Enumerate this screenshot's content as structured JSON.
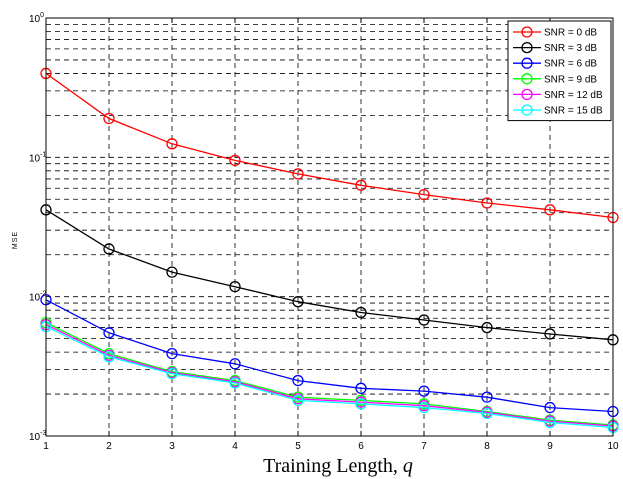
{
  "chart_data": {
    "type": "line",
    "xlabel": "Training Length,",
    "xlabel_var": "q",
    "ylabel": "MSE",
    "x": [
      1,
      2,
      3,
      4,
      5,
      6,
      7,
      8,
      9,
      10
    ],
    "xlim": [
      1,
      10
    ],
    "ylim": [
      0.001,
      1
    ],
    "yscale": "log",
    "y_ticks": [
      {
        "value": 1,
        "base": "10",
        "exp": "0"
      },
      {
        "value": 0.1,
        "base": "10",
        "exp": "-1"
      },
      {
        "value": 0.01,
        "base": "10",
        "exp": "-2"
      },
      {
        "value": 0.001,
        "base": "10",
        "exp": "-3"
      }
    ],
    "x_ticks": [
      "1",
      "2",
      "3",
      "4",
      "5",
      "6",
      "7",
      "8",
      "9",
      "10"
    ],
    "grid": true,
    "grid_style": "dashed",
    "legend_position": "top-right",
    "marker": "circle",
    "series": [
      {
        "name": "SNR = 0 dB",
        "color": "#ff0000",
        "values": [
          0.4,
          0.19,
          0.125,
          0.095,
          0.076,
          0.063,
          0.054,
          0.047,
          0.042,
          0.037
        ]
      },
      {
        "name": "SNR = 3 dB",
        "color": "#000000",
        "values": [
          0.042,
          0.022,
          0.015,
          0.0118,
          0.0092,
          0.0077,
          0.0068,
          0.006,
          0.0054,
          0.0049
        ]
      },
      {
        "name": "SNR = 6 dB",
        "color": "#0000ff",
        "values": [
          0.0095,
          0.0055,
          0.0039,
          0.0033,
          0.0025,
          0.0022,
          0.0021,
          0.0019,
          0.0016,
          0.0015
        ]
      },
      {
        "name": "SNR = 9 dB",
        "color": "#00ff00",
        "values": [
          0.0065,
          0.0039,
          0.0029,
          0.0025,
          0.0019,
          0.0018,
          0.0017,
          0.0015,
          0.0013,
          0.0012
        ]
      },
      {
        "name": "SNR = 12 dB",
        "color": "#ff00ff",
        "values": [
          0.0063,
          0.0038,
          0.00285,
          0.00245,
          0.00185,
          0.00175,
          0.00165,
          0.00148,
          0.00128,
          0.00118
        ]
      },
      {
        "name": "SNR = 15 dB",
        "color": "#00ffff",
        "values": [
          0.0061,
          0.0037,
          0.0028,
          0.0024,
          0.0018,
          0.0017,
          0.0016,
          0.00145,
          0.00125,
          0.00115
        ]
      }
    ]
  }
}
